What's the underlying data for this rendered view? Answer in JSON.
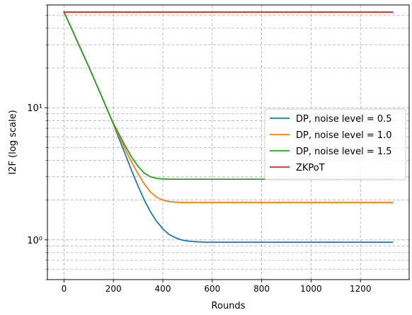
{
  "chart_data": {
    "type": "line",
    "title": "",
    "xlabel": "Rounds",
    "ylabel": "I2F (log scale)",
    "yscale": "log",
    "xlim": [
      -67,
      1397
    ],
    "ylim": [
      0.5,
      60
    ],
    "x_ticks": [
      0,
      200,
      400,
      600,
      800,
      1000,
      1200
    ],
    "x_tick_labels": [
      "0",
      "200",
      "400",
      "600",
      "800",
      "1000",
      "1200"
    ],
    "y_major_ticks": [
      1,
      10
    ],
    "y_major_tick_labels": [
      "10⁰",
      "10¹"
    ],
    "y_minor_ticks": [
      0.5,
      0.6,
      0.7,
      0.8,
      0.9,
      2,
      3,
      4,
      5,
      6,
      7,
      8,
      9,
      20,
      30,
      40,
      50,
      60
    ],
    "grid": true,
    "legend_position": "center-right",
    "x": [
      0,
      25,
      50,
      75,
      100,
      125,
      150,
      175,
      200,
      225,
      250,
      275,
      300,
      325,
      350,
      375,
      400,
      425,
      450,
      475,
      500,
      525,
      550,
      575,
      600,
      625,
      650,
      700,
      750,
      800,
      850,
      900,
      950,
      1000,
      1050,
      1100,
      1150,
      1200,
      1250,
      1300,
      1330
    ],
    "series": [
      {
        "name": "DP, noise level = 0.5",
        "color": "#1f77b4",
        "values": [
          53,
          42,
          33,
          26,
          20.5,
          16,
          12.5,
          9.7,
          7.5,
          5.7,
          4.35,
          3.3,
          2.55,
          2.0,
          1.63,
          1.38,
          1.21,
          1.1,
          1.04,
          1.0,
          0.98,
          0.97,
          0.965,
          0.96,
          0.96,
          0.96,
          0.96,
          0.96,
          0.96,
          0.96,
          0.96,
          0.96,
          0.96,
          0.96,
          0.96,
          0.96,
          0.96,
          0.96,
          0.96,
          0.96,
          0.96
        ]
      },
      {
        "name": "DP, noise level = 1.0",
        "color": "#ff7f0e",
        "values": [
          53,
          42,
          33,
          26,
          20.5,
          16,
          12.5,
          9.7,
          7.5,
          6.0,
          4.75,
          3.85,
          3.15,
          2.65,
          2.3,
          2.1,
          2.0,
          1.95,
          1.93,
          1.92,
          1.92,
          1.92,
          1.92,
          1.92,
          1.92,
          1.92,
          1.92,
          1.92,
          1.92,
          1.92,
          1.92,
          1.92,
          1.92,
          1.92,
          1.92,
          1.92,
          1.92,
          1.92,
          1.92,
          1.92,
          1.92
        ]
      },
      {
        "name": "DP, noise level = 1.5",
        "color": "#2ca02c",
        "values": [
          53,
          42,
          33,
          26,
          20.5,
          16,
          12.5,
          9.7,
          7.6,
          6.2,
          5.05,
          4.2,
          3.6,
          3.2,
          3.0,
          2.92,
          2.89,
          2.88,
          2.88,
          2.88,
          2.88,
          2.88,
          2.88,
          2.88,
          2.88,
          2.88,
          2.88,
          2.88,
          2.88,
          2.88,
          2.88,
          2.88,
          2.88,
          2.88,
          2.88,
          2.88,
          2.88,
          2.88,
          2.88,
          2.88,
          2.88
        ]
      },
      {
        "name": "ZKPoT",
        "color": "#d62728",
        "values": [
          53,
          53,
          53,
          53,
          53,
          53,
          53,
          53,
          53,
          53,
          53,
          53,
          53,
          53,
          53,
          53,
          53,
          53,
          53,
          53,
          53,
          53,
          53,
          53,
          53,
          53,
          53,
          53,
          53,
          53,
          53,
          53,
          53,
          53,
          53,
          53,
          53,
          53,
          53,
          53,
          53
        ]
      }
    ]
  }
}
